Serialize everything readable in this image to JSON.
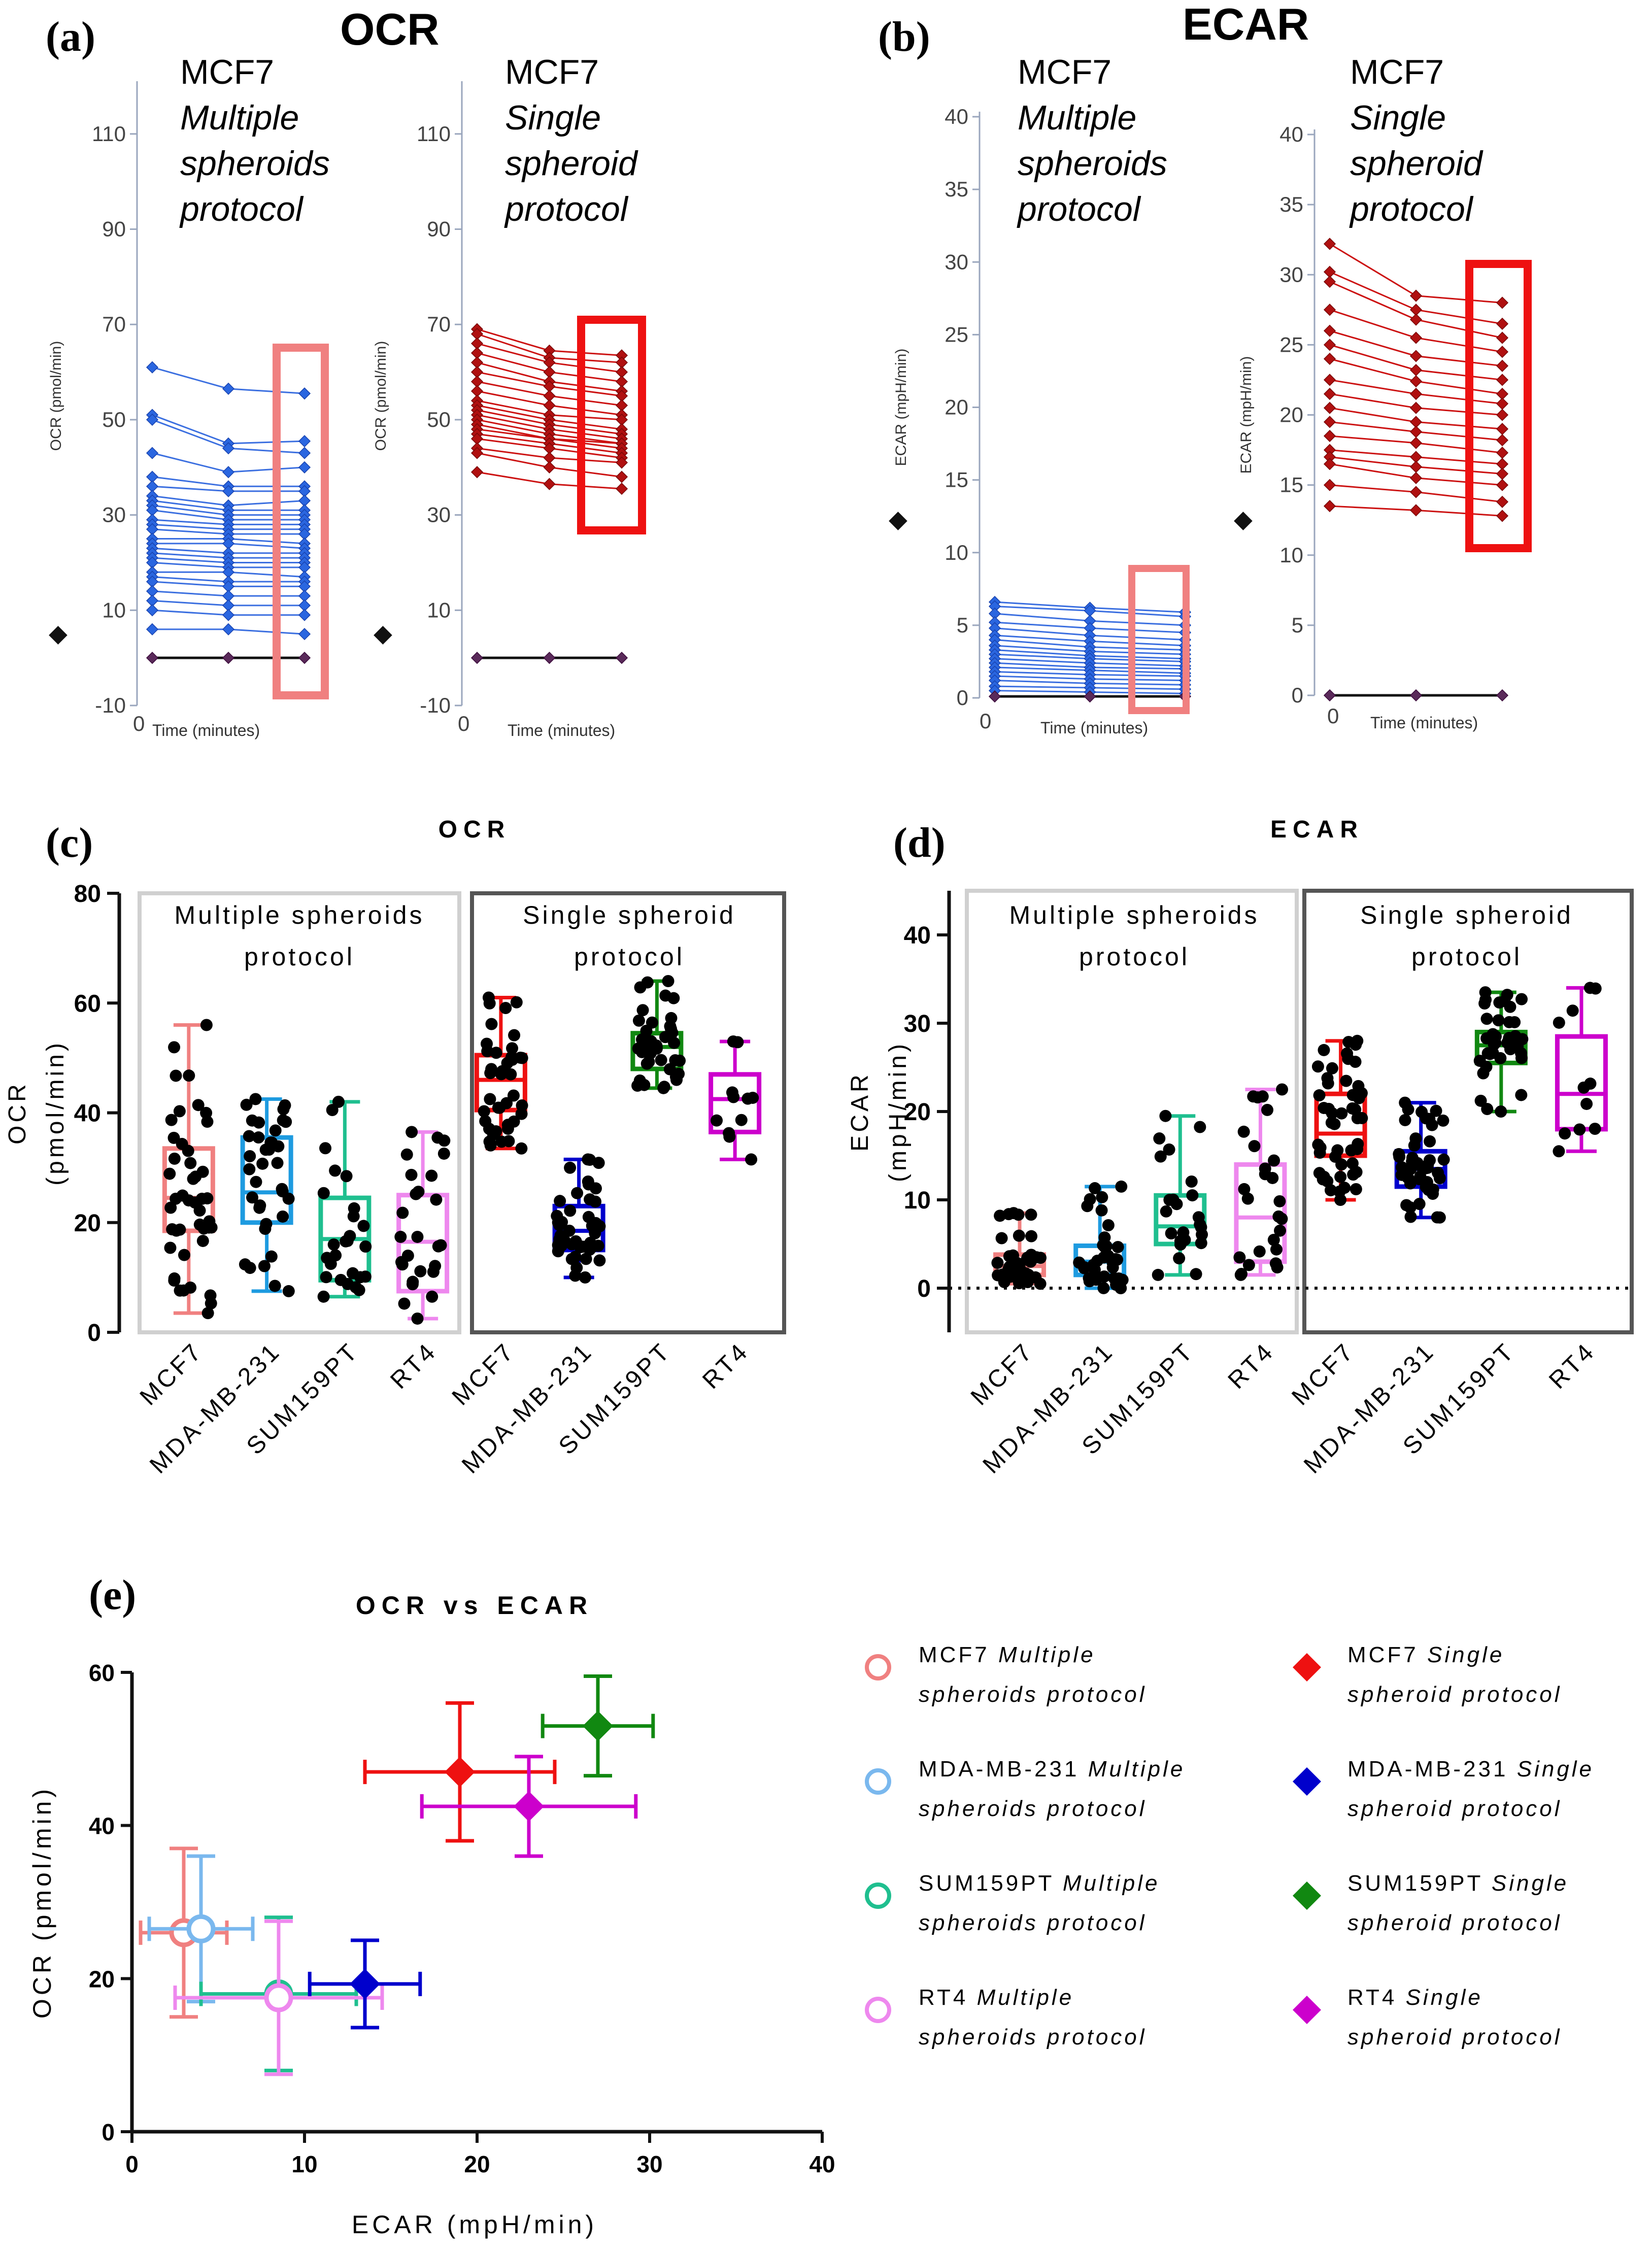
{
  "panels": {
    "a": {
      "label": "(a)",
      "title": "OCR"
    },
    "b": {
      "label": "(b)",
      "title": "ECAR"
    },
    "c": {
      "label": "(c)"
    },
    "d": {
      "label": "(d)"
    },
    "e": {
      "label": "(e)"
    }
  },
  "colors": {
    "mcf7_multi": "#f08080",
    "mda_multi": "#7ab8ee",
    "sum_multi": "#1fbf8f",
    "rt4_multi": "#ee88ee",
    "mcf7_single": "#ee1111",
    "mda_single": "#0000cc",
    "sum_single": "#118811",
    "rt4_single": "#cc00cc",
    "trace_multi": "#3b6fe0",
    "trace_single": "#cc1111",
    "frame_light": "#d0d0d0",
    "frame_dark": "#555555"
  },
  "chart_data": [
    {
      "id": "a-multi",
      "type": "line",
      "title": "MCF7",
      "subtitle_lines": [
        "Multiple",
        "spheroids",
        "protocol"
      ],
      "ylabel": "OCR (pmol/min)",
      "xlabel": "Time (minutes)",
      "legend_marker": "◆",
      "ylim": [
        -10,
        120
      ],
      "yticks": [
        -10,
        10,
        30,
        50,
        70,
        90,
        110
      ],
      "xticks_label": "0",
      "x": [
        1,
        2,
        3
      ],
      "series": [
        [
          61,
          56.5,
          55.5
        ],
        [
          51,
          45,
          45.5
        ],
        [
          50,
          44,
          43
        ],
        [
          43,
          39,
          40
        ],
        [
          38,
          36,
          36
        ],
        [
          36,
          35,
          35
        ],
        [
          34,
          32,
          33
        ],
        [
          33,
          31,
          31
        ],
        [
          32,
          30,
          30
        ],
        [
          31,
          29,
          29
        ],
        [
          29,
          28,
          28
        ],
        [
          28,
          27,
          27
        ],
        [
          27,
          26,
          26
        ],
        [
          25,
          25,
          24
        ],
        [
          24,
          24,
          23
        ],
        [
          23,
          22,
          22
        ],
        [
          22,
          21,
          21
        ],
        [
          21,
          20,
          20
        ],
        [
          20,
          19,
          19
        ],
        [
          18,
          18,
          17
        ],
        [
          17,
          16,
          16
        ],
        [
          16,
          15,
          15
        ],
        [
          14,
          13,
          13
        ],
        [
          12,
          11,
          11
        ],
        [
          10,
          9,
          9
        ],
        [
          6,
          6,
          5
        ],
        [
          0,
          0,
          0
        ]
      ],
      "highlight_color": "#f08080"
    },
    {
      "id": "a-single",
      "type": "line",
      "title": "MCF7",
      "subtitle_lines": [
        "Single",
        "spheroid",
        "protocol"
      ],
      "ylabel": "OCR (pmol/min)",
      "xlabel": "Time (minutes)",
      "legend_marker": "◆",
      "ylim": [
        -10,
        120
      ],
      "yticks": [
        -10,
        10,
        30,
        50,
        70,
        90,
        110
      ],
      "xticks_label": "0",
      "x": [
        1,
        2,
        3
      ],
      "series": [
        [
          69,
          64.5,
          63.5
        ],
        [
          68,
          63,
          62
        ],
        [
          66,
          62,
          60
        ],
        [
          64,
          60,
          58
        ],
        [
          62,
          58,
          56
        ],
        [
          60,
          57,
          55
        ],
        [
          58,
          55,
          53
        ],
        [
          56,
          53,
          51
        ],
        [
          54,
          51,
          50
        ],
        [
          53,
          50,
          48
        ],
        [
          52,
          49,
          47
        ],
        [
          51,
          48,
          46
        ],
        [
          50,
          47,
          45
        ],
        [
          49,
          46,
          45
        ],
        [
          48,
          46,
          44
        ],
        [
          47,
          45,
          43
        ],
        [
          46,
          44,
          42
        ],
        [
          44,
          42,
          41
        ],
        [
          43,
          40,
          38
        ],
        [
          39,
          36.5,
          35.5
        ],
        [
          0,
          0,
          0
        ]
      ],
      "highlight_color": "#ee1111"
    },
    {
      "id": "b-multi",
      "type": "line",
      "title": "MCF7",
      "subtitle_lines": [
        "Multiple",
        "spheroids",
        "protocol"
      ],
      "ylabel": "ECAR (mpH/min)",
      "xlabel": "Time (minutes)",
      "legend_marker": "◆",
      "ylim": [
        0,
        40
      ],
      "yticks": [
        0,
        5,
        10,
        15,
        20,
        25,
        30,
        35,
        40
      ],
      "xticks_label": "0",
      "x": [
        1,
        2,
        3
      ],
      "series": [
        [
          6.6,
          6.2,
          5.9
        ],
        [
          6.3,
          6.0,
          5.6
        ],
        [
          5.8,
          5.3,
          5.0
        ],
        [
          5.2,
          4.8,
          4.5
        ],
        [
          4.8,
          4.3,
          4.0
        ],
        [
          4.3,
          3.9,
          3.6
        ],
        [
          4.0,
          3.5,
          3.3
        ],
        [
          3.6,
          3.2,
          3.0
        ],
        [
          3.3,
          2.9,
          2.7
        ],
        [
          3.0,
          2.7,
          2.5
        ],
        [
          2.7,
          2.4,
          2.2
        ],
        [
          2.4,
          2.1,
          2.0
        ],
        [
          2.1,
          1.9,
          1.7
        ],
        [
          1.8,
          1.6,
          1.5
        ],
        [
          1.5,
          1.3,
          1.2
        ],
        [
          1.2,
          1.0,
          0.9
        ],
        [
          0.8,
          0.7,
          0.6
        ],
        [
          0.5,
          0.4,
          0.3
        ],
        [
          0.1,
          0.1,
          0.1
        ]
      ],
      "highlight_color": "#f08080"
    },
    {
      "id": "b-single",
      "type": "line",
      "title": "MCF7",
      "subtitle_lines": [
        "Single",
        "spheroid",
        "protocol"
      ],
      "ylabel": "ECAR (mpH/min)",
      "xlabel": "Time (minutes)",
      "legend_marker": "◆",
      "ylim": [
        0,
        40
      ],
      "yticks": [
        0,
        5,
        10,
        15,
        20,
        25,
        30,
        35,
        40
      ],
      "xticks_label": "0",
      "x": [
        1,
        2,
        3
      ],
      "series": [
        [
          32.2,
          28.5,
          28
        ],
        [
          30.2,
          27.5,
          26.5
        ],
        [
          29.5,
          26.8,
          25.5
        ],
        [
          27.5,
          25.5,
          24.5
        ],
        [
          26,
          24.2,
          23.5
        ],
        [
          25,
          23.2,
          22.5
        ],
        [
          24,
          22.4,
          21.5
        ],
        [
          22.5,
          21.5,
          20.8
        ],
        [
          21.5,
          20.5,
          20
        ],
        [
          20.5,
          19.5,
          19
        ],
        [
          19.5,
          18.8,
          18.2
        ],
        [
          18.5,
          18,
          17.3
        ],
        [
          17.5,
          17,
          16.5
        ],
        [
          17,
          16.3,
          15.8
        ],
        [
          16.5,
          15.5,
          15
        ],
        [
          15,
          14.5,
          13.8
        ],
        [
          13.5,
          13.2,
          12.8
        ],
        [
          0,
          0,
          0
        ]
      ],
      "highlight_color": "#ee1111"
    },
    {
      "id": "c",
      "type": "box",
      "title": "OCR",
      "ylabel_lines": [
        "OCR",
        "(pmol/min)"
      ],
      "ylim": [
        0,
        80
      ],
      "yticks": [
        0,
        20,
        40,
        60,
        80
      ],
      "group_labels": [
        [
          "Multiple spheroids",
          "protocol"
        ],
        [
          "Single spheroid",
          "protocol"
        ]
      ],
      "categories": [
        "MCF7",
        "MDA-MB-231",
        "SUM159PT",
        "RT4",
        "MCF7",
        "MDA-MB-231",
        "SUM159PT",
        "RT4"
      ],
      "boxes": [
        {
          "min": 3.5,
          "q1": 18.5,
          "median": 24.5,
          "q3": 33.5,
          "max": 56,
          "n": 45,
          "color": "#f08080"
        },
        {
          "min": 7.5,
          "q1": 20,
          "median": 25.5,
          "q3": 35.5,
          "max": 42.5,
          "n": 36,
          "color": "#1e9be0"
        },
        {
          "min": 6.5,
          "q1": 9.5,
          "median": 17,
          "q3": 24.5,
          "max": 42,
          "n": 26,
          "color": "#1fbf8f"
        },
        {
          "min": 2.5,
          "q1": 7.5,
          "median": 16.5,
          "q3": 25,
          "max": 36.5,
          "n": 26,
          "color": "#ee88ee"
        },
        {
          "min": 33.5,
          "q1": 40.5,
          "median": 46,
          "q3": 50.5,
          "max": 61,
          "n": 40,
          "color": "#ee1111"
        },
        {
          "min": 10,
          "q1": 15,
          "median": 18.5,
          "q3": 23,
          "max": 31.5,
          "n": 45,
          "color": "#0000cc"
        },
        {
          "min": 44.5,
          "q1": 48,
          "median": 52,
          "q3": 54.5,
          "max": 64,
          "n": 40,
          "color": "#118811"
        },
        {
          "min": 31.5,
          "q1": 36.5,
          "median": 42.5,
          "q3": 47,
          "max": 53,
          "n": 11,
          "color": "#cc00cc"
        }
      ]
    },
    {
      "id": "d",
      "type": "box",
      "title": "ECAR",
      "ylabel_lines": [
        "ECAR",
        "(mpH/min)"
      ],
      "ylim": [
        -5,
        45
      ],
      "yticks": [
        0,
        10,
        20,
        30,
        40
      ],
      "group_labels": [
        [
          "Multiple spheroids",
          "protocol"
        ],
        [
          "Single spheroid",
          "protocol"
        ]
      ],
      "categories": [
        "MCF7",
        "MDA-MB-231",
        "SUM159PT",
        "RT4",
        "MCF7",
        "MDA-MB-231",
        "SUM159PT",
        "RT4"
      ],
      "boxes": [
        {
          "min": 0.5,
          "q1": 1.5,
          "median": 2.5,
          "q3": 3.8,
          "max": 8.5,
          "n": 36,
          "color": "#f08080"
        },
        {
          "min": 0,
          "q1": 1.5,
          "median": 3,
          "q3": 4.8,
          "max": 11.5,
          "n": 34,
          "color": "#1e9be0"
        },
        {
          "min": 1.5,
          "q1": 5,
          "median": 7,
          "q3": 10.5,
          "max": 19.5,
          "n": 24,
          "color": "#1fbf8f"
        },
        {
          "min": 1.5,
          "q1": 3,
          "median": 8,
          "q3": 14,
          "max": 22.5,
          "n": 26,
          "color": "#ee88ee"
        },
        {
          "min": 10,
          "q1": 15,
          "median": 17.5,
          "q3": 22,
          "max": 28,
          "n": 50,
          "color": "#ee1111"
        },
        {
          "min": 8,
          "q1": 11.5,
          "median": 13.5,
          "q3": 15.5,
          "max": 21,
          "n": 45,
          "color": "#0000cc"
        },
        {
          "min": 20,
          "q1": 25.5,
          "median": 27.5,
          "q3": 29,
          "max": 33.5,
          "n": 40,
          "color": "#118811"
        },
        {
          "min": 15.5,
          "q1": 18,
          "median": 22,
          "q3": 28.5,
          "max": 34,
          "n": 11,
          "color": "#cc00cc"
        }
      ]
    },
    {
      "id": "e",
      "type": "scatter",
      "title": "OCR vs ECAR",
      "xlabel": "ECAR (mpH/min)",
      "ylabel": "OCR (pmol/min)",
      "xlim": [
        0,
        40
      ],
      "ylim": [
        0,
        60
      ],
      "xticks": [
        0,
        10,
        20,
        30,
        40
      ],
      "yticks": [
        0,
        20,
        40,
        60
      ],
      "points": [
        {
          "name": "MCF7",
          "protocol": "Multiple",
          "x": 3,
          "y": 26,
          "xerr": 2.5,
          "yerr": 11,
          "marker": "circle",
          "color": "#f08080"
        },
        {
          "name": "MDA-MB-231",
          "protocol": "Multiple",
          "x": 4,
          "y": 26.5,
          "xerr": 3,
          "yerr": 9.5,
          "marker": "circle",
          "color": "#7ab8ee"
        },
        {
          "name": "SUM159PT",
          "protocol": "Multiple",
          "x": 8.5,
          "y": 18,
          "xerr": 4.5,
          "yerr": 10,
          "marker": "circle",
          "color": "#1fbf8f"
        },
        {
          "name": "RT4",
          "protocol": "Multiple",
          "x": 8.5,
          "y": 17.5,
          "xerr": 6,
          "yerr": 10,
          "marker": "circle",
          "color": "#ee88ee"
        },
        {
          "name": "MCF7",
          "protocol": "Single",
          "x": 19,
          "y": 47,
          "xerr": 5.5,
          "yerr": 9,
          "marker": "diamond",
          "color": "#ee1111"
        },
        {
          "name": "MDA-MB-231",
          "protocol": "Single",
          "x": 13.5,
          "y": 19.3,
          "xerr": 3.2,
          "yerr": 5.7,
          "marker": "diamond",
          "color": "#0000cc"
        },
        {
          "name": "SUM159PT",
          "protocol": "Single",
          "x": 27,
          "y": 53,
          "xerr": 3.2,
          "yerr": 6.5,
          "marker": "diamond",
          "color": "#118811"
        },
        {
          "name": "RT4",
          "protocol": "Single",
          "x": 23,
          "y": 42.5,
          "xerr": 6.2,
          "yerr": 6.5,
          "marker": "diamond",
          "color": "#cc00cc"
        }
      ],
      "legend": [
        {
          "name": "MCF7",
          "protocol_lines": [
            "Multiple",
            "spheroids protocol"
          ],
          "marker": "circle",
          "color": "#f08080"
        },
        {
          "name": "MDA-MB-231",
          "protocol_lines": [
            "Multiple",
            "spheroids protocol"
          ],
          "marker": "circle",
          "color": "#7ab8ee"
        },
        {
          "name": "SUM159PT",
          "protocol_lines": [
            "Multiple",
            "spheroids protocol"
          ],
          "marker": "circle",
          "color": "#1fbf8f"
        },
        {
          "name": "RT4",
          "protocol_lines": [
            "Multiple",
            "spheroids protocol"
          ],
          "marker": "circle",
          "color": "#ee88ee"
        },
        {
          "name": "MCF7",
          "protocol_lines": [
            "Single",
            "spheroid protocol"
          ],
          "marker": "diamond",
          "color": "#ee1111"
        },
        {
          "name": "MDA-MB-231",
          "protocol_lines": [
            "Single",
            "spheroid protocol"
          ],
          "marker": "diamond",
          "color": "#0000cc"
        },
        {
          "name": "SUM159PT",
          "protocol_lines": [
            "Single",
            "spheroid protocol"
          ],
          "marker": "diamond",
          "color": "#118811"
        },
        {
          "name": "RT4",
          "protocol_lines": [
            "Single",
            "spheroid protocol"
          ],
          "marker": "diamond",
          "color": "#cc00cc"
        }
      ]
    }
  ]
}
